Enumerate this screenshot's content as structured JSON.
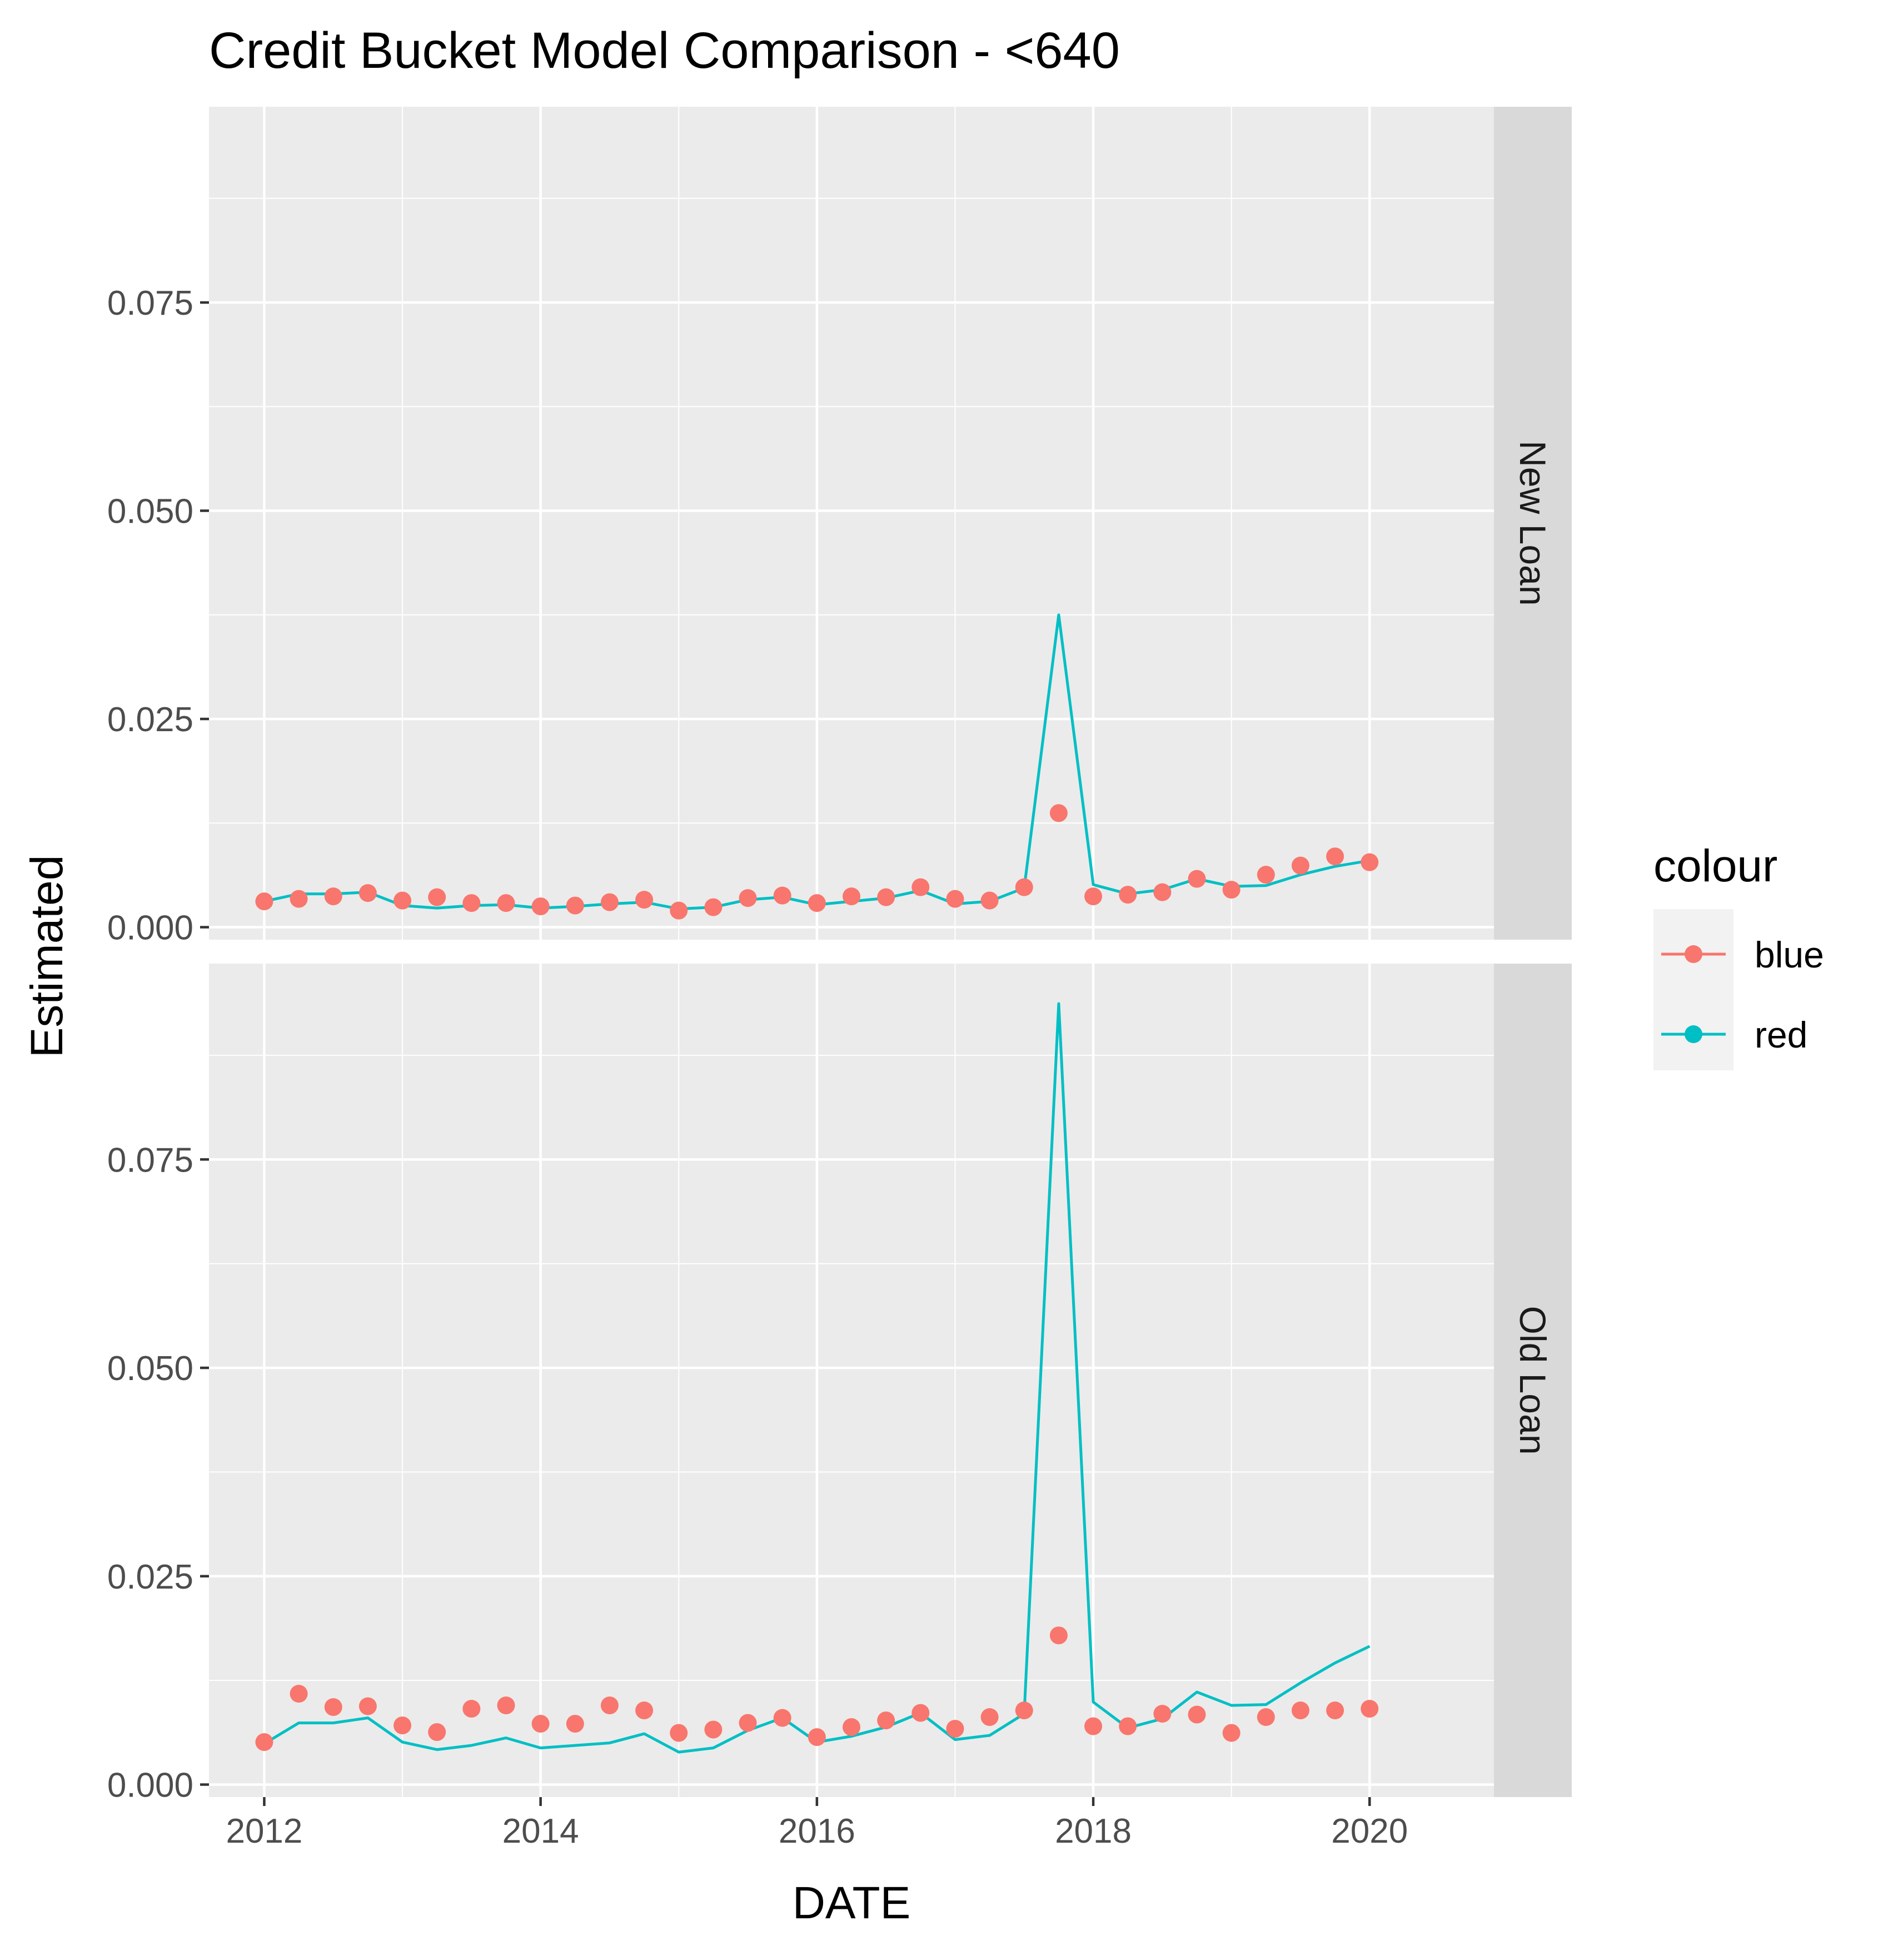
{
  "chart_data": {
    "type": "line",
    "title": "Credit Bucket Model Comparison - <640",
    "xlabel": "DATE",
    "ylabel": "Estimated",
    "xlim": [
      2011.6,
      2020.9
    ],
    "ylim": [
      -0.0015,
      0.0985
    ],
    "x_ticks": [
      2012,
      2014,
      2016,
      2018,
      2020
    ],
    "y_ticks": [
      0.0,
      0.025,
      0.05,
      0.075
    ],
    "y_tick_labels": [
      "0.000",
      "0.025",
      "0.050",
      "0.075"
    ],
    "grid": true,
    "legend": {
      "title": "colour",
      "position": "right",
      "entries": [
        {
          "label": "blue",
          "color": "#F8766D"
        },
        {
          "label": "red",
          "color": "#00BFC4"
        }
      ]
    },
    "x": [
      2012.0,
      2012.25,
      2012.5,
      2012.75,
      2013.0,
      2013.25,
      2013.5,
      2013.75,
      2014.0,
      2014.25,
      2014.5,
      2014.75,
      2015.0,
      2015.25,
      2015.5,
      2015.75,
      2016.0,
      2016.25,
      2016.5,
      2016.75,
      2017.0,
      2017.25,
      2017.5,
      2017.75,
      2018.0,
      2018.25,
      2018.5,
      2018.75,
      2019.0,
      2019.25,
      2019.5,
      2019.75,
      2020.0
    ],
    "panels": [
      {
        "label": "New Loan",
        "series": [
          {
            "name": "blue",
            "mark": "point",
            "color": "#F8766D",
            "values": [
              0.0031,
              0.0034,
              0.0037,
              0.0041,
              0.0032,
              0.0036,
              0.0029,
              0.0029,
              0.0025,
              0.0026,
              0.003,
              0.0033,
              0.002,
              0.0024,
              0.0035,
              0.0038,
              0.0029,
              0.0037,
              0.0036,
              0.0048,
              0.0034,
              0.0032,
              0.0048,
              0.0137,
              0.0037,
              0.0039,
              0.0042,
              0.0058,
              0.0045,
              0.0063,
              0.0074,
              0.0085,
              0.0078
            ]
          },
          {
            "name": "red",
            "mark": "line",
            "color": "#00BFC4",
            "values": [
              0.0031,
              0.004,
              0.004,
              0.0042,
              0.0026,
              0.0023,
              0.0026,
              0.0027,
              0.0023,
              0.0025,
              0.0028,
              0.003,
              0.0022,
              0.0024,
              0.0033,
              0.0036,
              0.0027,
              0.0031,
              0.0035,
              0.0044,
              0.0028,
              0.0031,
              0.0047,
              0.0375,
              0.0051,
              0.004,
              0.0045,
              0.0058,
              0.0049,
              0.005,
              0.0063,
              0.0073,
              0.008
            ]
          }
        ]
      },
      {
        "label": "Old Loan",
        "series": [
          {
            "name": "blue",
            "mark": "point",
            "color": "#F8766D",
            "values": [
              0.0051,
              0.0109,
              0.0093,
              0.0094,
              0.0071,
              0.0063,
              0.0091,
              0.0095,
              0.0073,
              0.0073,
              0.0095,
              0.0089,
              0.0062,
              0.0066,
              0.0074,
              0.008,
              0.0057,
              0.0069,
              0.0077,
              0.0086,
              0.0067,
              0.0081,
              0.0089,
              0.0179,
              0.007,
              0.007,
              0.0085,
              0.0084,
              0.0062,
              0.0081,
              0.0089,
              0.0089,
              0.0091
            ]
          },
          {
            "name": "red",
            "mark": "line",
            "color": "#00BFC4",
            "values": [
              0.0049,
              0.0074,
              0.0074,
              0.008,
              0.0051,
              0.0042,
              0.0047,
              0.0056,
              0.0044,
              0.0047,
              0.005,
              0.0061,
              0.0039,
              0.0044,
              0.0065,
              0.008,
              0.0051,
              0.0058,
              0.0069,
              0.0086,
              0.0054,
              0.0059,
              0.0085,
              0.0937,
              0.0099,
              0.0068,
              0.0079,
              0.0111,
              0.0095,
              0.0096,
              0.0122,
              0.0146,
              0.0166
            ]
          }
        ]
      }
    ]
  }
}
